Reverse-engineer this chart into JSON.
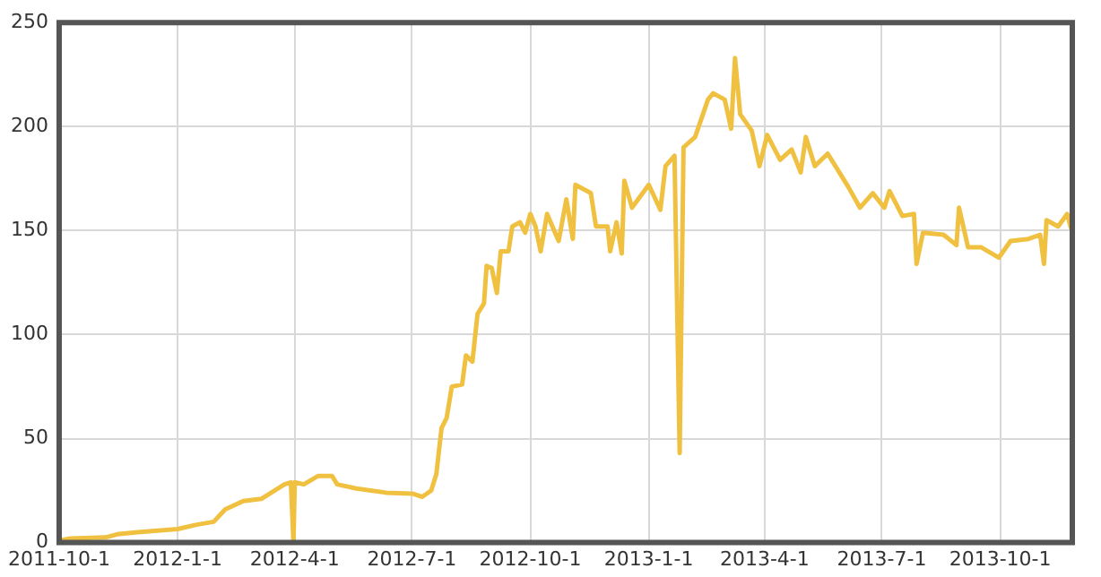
{
  "chart_data": {
    "type": "line",
    "x": [
      "2011-10-01",
      "2011-10-10",
      "2011-11-06",
      "2011-11-15",
      "2011-12-01",
      "2012-01-01",
      "2012-01-15",
      "2012-01-29",
      "2012-02-07",
      "2012-02-21",
      "2012-03-06",
      "2012-03-24",
      "2012-03-29",
      "2012-03-31",
      "2012-04-01",
      "2012-04-08",
      "2012-04-19",
      "2012-04-30",
      "2012-05-04",
      "2012-05-19",
      "2012-06-11",
      "2012-07-02",
      "2012-07-09",
      "2012-07-16",
      "2012-07-20",
      "2012-07-24",
      "2012-07-28",
      "2012-08-01",
      "2012-08-09",
      "2012-08-12",
      "2012-08-17",
      "2012-08-21",
      "2012-08-26",
      "2012-08-28",
      "2012-09-01",
      "2012-09-05",
      "2012-09-08",
      "2012-09-14",
      "2012-09-17",
      "2012-09-23",
      "2012-09-27",
      "2012-10-01",
      "2012-10-05",
      "2012-10-09",
      "2012-10-14",
      "2012-10-23",
      "2012-10-29",
      "2012-11-03",
      "2012-11-05",
      "2012-11-17",
      "2012-11-21",
      "2012-11-30",
      "2012-12-02",
      "2012-12-07",
      "2012-12-11",
      "2012-12-13",
      "2012-12-19",
      "2013-01-01",
      "2013-01-10",
      "2013-01-14",
      "2013-01-21",
      "2013-01-25",
      "2013-01-28",
      "2013-02-06",
      "2013-02-16",
      "2013-02-20",
      "2013-03-01",
      "2013-03-06",
      "2013-03-09",
      "2013-03-13",
      "2013-03-22",
      "2013-03-28",
      "2013-04-03",
      "2013-04-13",
      "2013-04-22",
      "2013-04-29",
      "2013-05-03",
      "2013-05-10",
      "2013-05-20",
      "2013-05-29",
      "2013-06-05",
      "2013-06-14",
      "2013-06-24",
      "2013-07-03",
      "2013-07-07",
      "2013-07-17",
      "2013-07-26",
      "2013-07-28",
      "2013-08-02",
      "2013-08-18",
      "2013-08-28",
      "2013-08-30",
      "2013-09-06",
      "2013-09-16",
      "2013-09-30",
      "2013-10-09",
      "2013-10-23",
      "2013-11-01",
      "2013-11-04",
      "2013-11-06",
      "2013-11-15",
      "2013-11-22",
      "2013-11-25"
    ],
    "series": [
      {
        "color": "#f0c040",
        "values": [
          1,
          2,
          2.5,
          4,
          5,
          6.5,
          8.5,
          10,
          16,
          20,
          21,
          28,
          29,
          0,
          29,
          28,
          32,
          32,
          28,
          26,
          24,
          23.5,
          22,
          25,
          33,
          55,
          60,
          75,
          76,
          90,
          87,
          110,
          115,
          133,
          132,
          120,
          140,
          140,
          152,
          154,
          149,
          158,
          152,
          140,
          158,
          145,
          165,
          146,
          172,
          168,
          152,
          152,
          140,
          154,
          139,
          174,
          161,
          172,
          160,
          181,
          186,
          43,
          190,
          195,
          213,
          216,
          213,
          199,
          233,
          206,
          198,
          181,
          196,
          184,
          189,
          178,
          195,
          181,
          187,
          178,
          171,
          161,
          168,
          161,
          169,
          157,
          158,
          134,
          149,
          148,
          143,
          161,
          142,
          142,
          137,
          145,
          146,
          148,
          134,
          155,
          152,
          158,
          151
        ]
      }
    ],
    "xlim": [
      "2011-10-01",
      "2013-11-26"
    ],
    "xticks": [
      {
        "value": "2011-10-01",
        "label": "2011-10-1"
      },
      {
        "value": "2012-01-01",
        "label": "2012-1-1"
      },
      {
        "value": "2012-04-01",
        "label": "2012-4-1"
      },
      {
        "value": "2012-07-01",
        "label": "2012-7-1"
      },
      {
        "value": "2012-10-01",
        "label": "2012-10-1"
      },
      {
        "value": "2013-01-01",
        "label": "2013-1-1"
      },
      {
        "value": "2013-04-01",
        "label": "2013-4-1"
      },
      {
        "value": "2013-07-01",
        "label": "2013-7-1"
      },
      {
        "value": "2013-10-01",
        "label": "2013-10-1"
      }
    ],
    "ylim": [
      0,
      250
    ],
    "yticks": [
      0,
      50,
      100,
      150,
      200,
      250
    ],
    "grid": true,
    "marker": "none",
    "line_style": "solid"
  }
}
